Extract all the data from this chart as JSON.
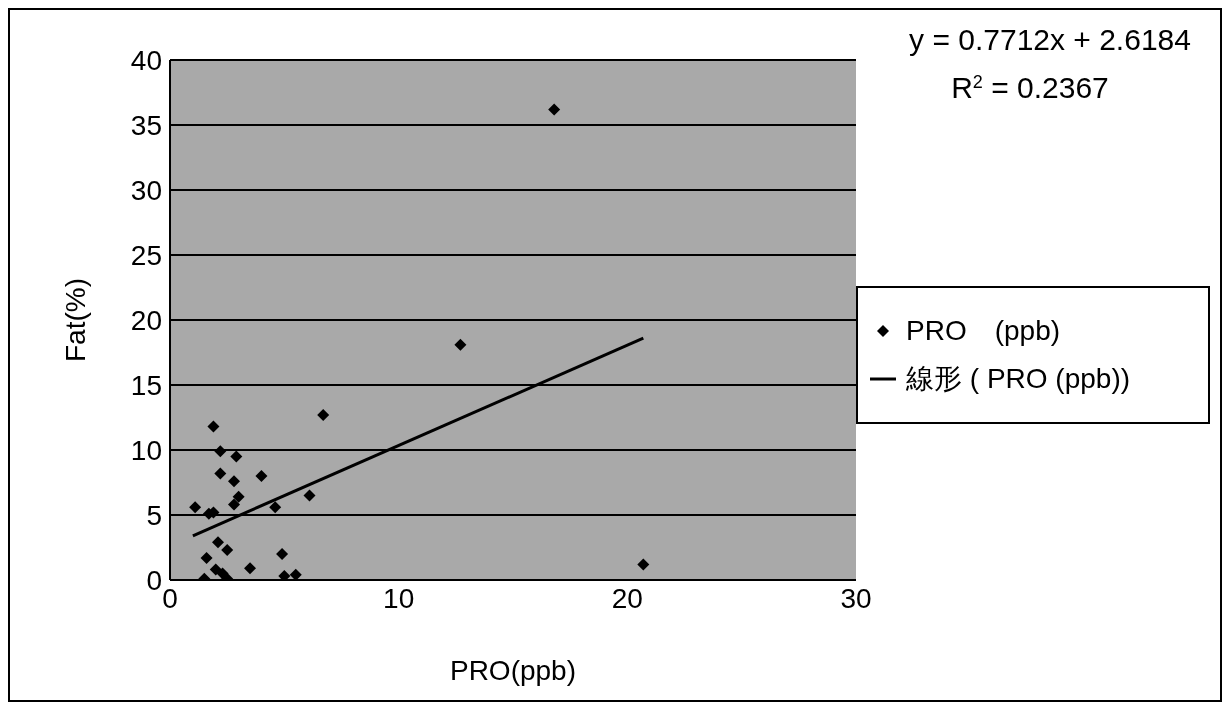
{
  "chart_data": {
    "type": "scatter",
    "xlabel": "PRO(ppb)",
    "ylabel": "Fat(%)",
    "xlim": [
      0,
      30
    ],
    "xticks": [
      0,
      10,
      20,
      30
    ],
    "ylim": [
      0,
      40
    ],
    "yticks": [
      0,
      5,
      10,
      15,
      20,
      25,
      30,
      35,
      40
    ],
    "grid": "y",
    "legend": "right",
    "annotations": [
      "y = 0.7712x + 2.6184",
      "R$^{2}$ = 0.2367"
    ],
    "series": [
      {
        "name": "PRO　(ppb)",
        "marker": "diamond",
        "color": "#000000",
        "x": [
          16.8,
          12.7,
          20.7,
          6.7,
          6.1,
          1.1,
          1.7,
          1.9,
          1.9,
          2.2,
          2.9,
          2.2,
          2.8,
          4.0,
          3.0,
          2.8,
          4.6,
          2.1,
          2.5,
          1.6,
          4.9,
          3.5,
          2.0,
          2.3,
          1.5,
          2.5,
          5.0,
          5.5
        ],
        "values": [
          36.2,
          18.1,
          1.2,
          12.7,
          6.5,
          5.6,
          5.1,
          5.2,
          11.8,
          9.9,
          9.5,
          8.2,
          7.6,
          8.0,
          6.4,
          5.8,
          5.6,
          2.9,
          2.3,
          1.7,
          2.0,
          0.9,
          0.8,
          0.5,
          0.1,
          0.1,
          0.3,
          0.4
        ]
      },
      {
        "name": "線形 ( PRO (ppb))",
        "type": "line",
        "color": "#000000",
        "x": [
          1.0,
          20.7
        ],
        "values": [
          3.4,
          18.6
        ],
        "marker": "none"
      }
    ]
  }
}
